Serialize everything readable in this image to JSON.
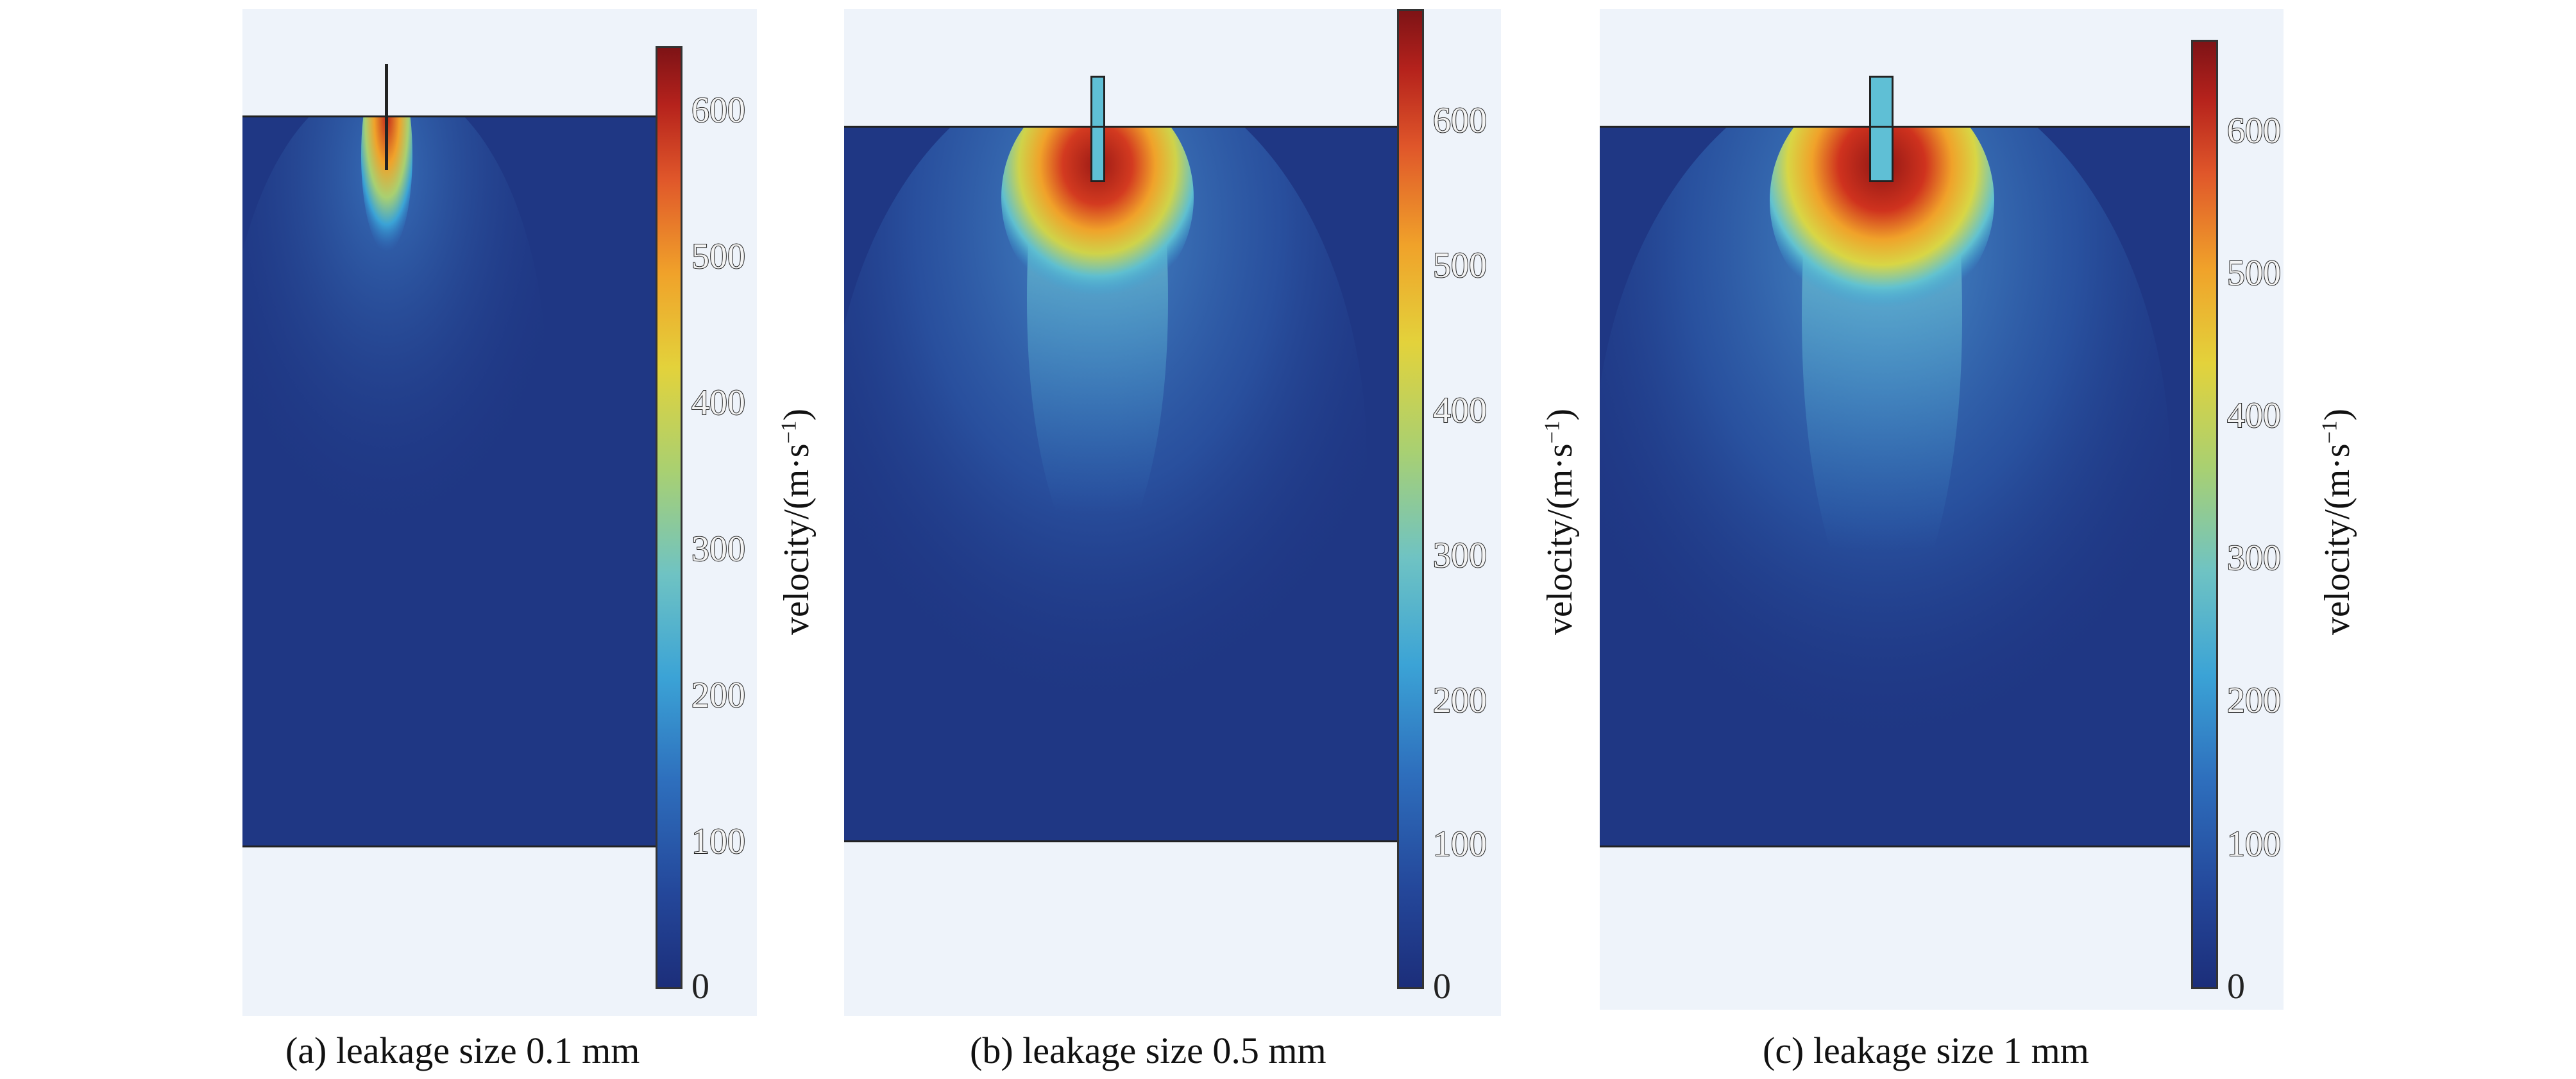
{
  "colorbar": {
    "title_main": "velocity/(m·s",
    "title_sup": "−1",
    "title_end": ")",
    "ticks": [
      "0",
      "100",
      "200",
      "300",
      "400",
      "500",
      "600"
    ]
  },
  "panels": [
    {
      "caption": "(a) leakage size 0.1 mm",
      "leakage_size_mm": 0.1
    },
    {
      "caption": "(b) leakage size 0.5 mm",
      "leakage_size_mm": 0.5
    },
    {
      "caption": "(c) leakage size 1 mm",
      "leakage_size_mm": 1
    }
  ],
  "colors": {
    "background_field": "#1f3784",
    "outside_region": "#eef3fa",
    "max_velocity": "#b5221c"
  }
}
